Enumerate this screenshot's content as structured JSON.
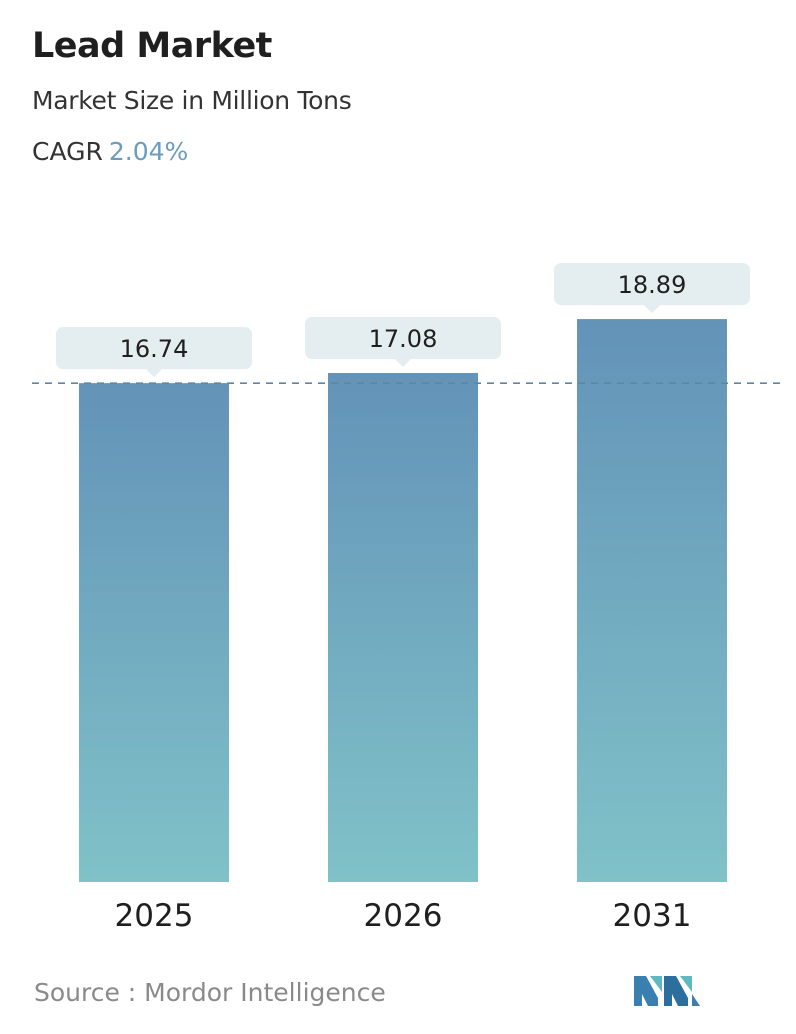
{
  "header": {
    "title": "Lead Market",
    "subtitle": "Market Size in Million Tons",
    "cagr_label": "CAGR",
    "cagr_value": "2.04%"
  },
  "chart_data": {
    "type": "bar",
    "categories": [
      "2025",
      "2026",
      "2031"
    ],
    "values": [
      16.74,
      17.08,
      18.89
    ],
    "value_labels": [
      "16.74",
      "17.08",
      "18.89"
    ],
    "title": "Lead Market",
    "subtitle": "Market Size in Million Tons",
    "ylabel": "",
    "xlabel": "",
    "reference_line": "dashed line at first bar value",
    "grid": false,
    "legend": "none",
    "colors": {
      "bar_top": "#6393b8",
      "bar_bottom": "#80c2c8",
      "label_bg": "#e4edef",
      "dash": "#5d87a3"
    }
  },
  "footer": {
    "source_text": "Source :  Mordor Intelligence",
    "logo_icon": "mordor-intelligence-logo-icon"
  }
}
